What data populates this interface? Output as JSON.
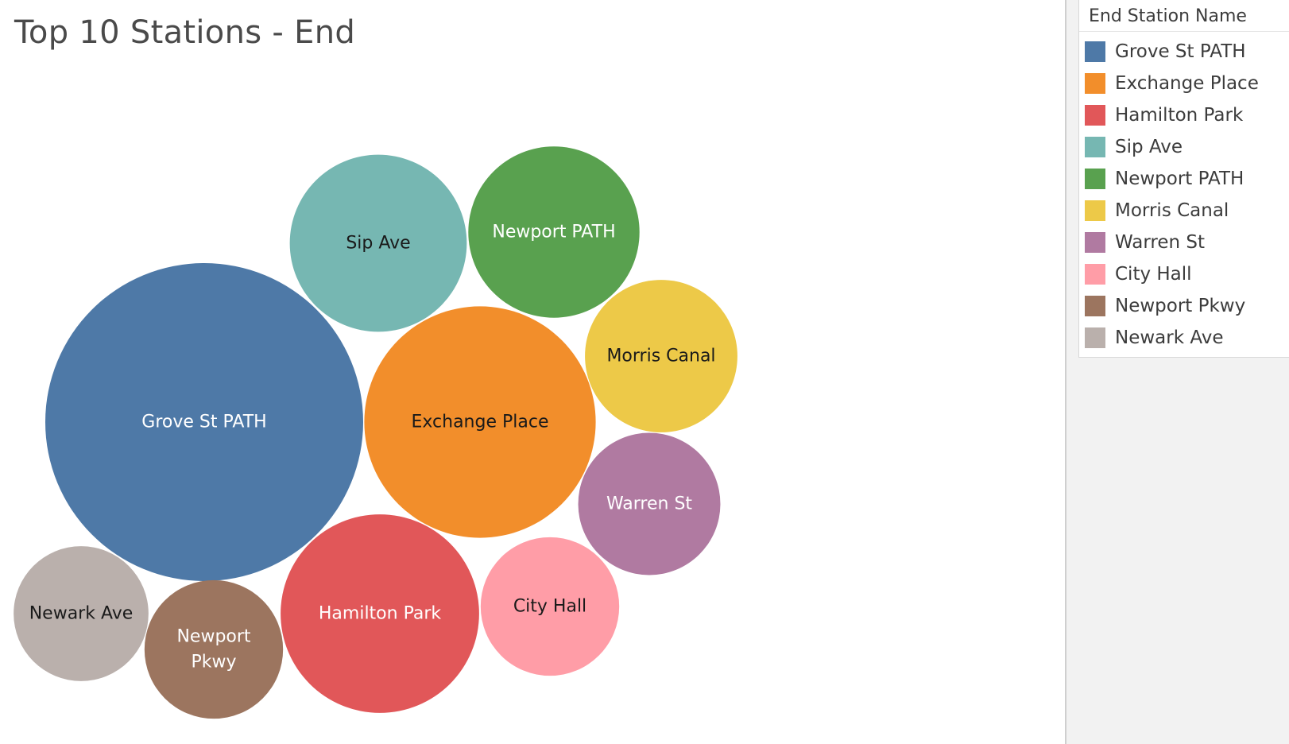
{
  "title": "Top 10 Stations - End",
  "legend": {
    "title": "End Station Name"
  },
  "chart_data": {
    "type": "bubble",
    "title": "Top 10 Stations - End",
    "legend_title": "End Station Name",
    "legend_position": "right",
    "size_encodes": "trip count (relative, estimated from bubble area)",
    "series": [
      {
        "name": "Grove St PATH",
        "value": 100,
        "color": "#4e79a7",
        "label_color": "#ffffff"
      },
      {
        "name": "Exchange Place",
        "value": 53,
        "color": "#f28e2b",
        "label_color": "#1a1a1a"
      },
      {
        "name": "Hamilton Park",
        "value": 39,
        "color": "#e15759",
        "label_color": "#ffffff"
      },
      {
        "name": "Sip Ave",
        "value": 31,
        "color": "#76b7b2",
        "label_color": "#1a1a1a"
      },
      {
        "name": "Newport PATH",
        "value": 29,
        "color": "#59a14f",
        "label_color": "#ffffff"
      },
      {
        "name": "Morris Canal",
        "value": 23,
        "color": "#edc948",
        "label_color": "#1a1a1a"
      },
      {
        "name": "Warren St",
        "value": 20,
        "color": "#b07aa1",
        "label_color": "#ffffff"
      },
      {
        "name": "City Hall",
        "value": 19,
        "color": "#ff9da7",
        "label_color": "#1a1a1a"
      },
      {
        "name": "Newport Pkwy",
        "value": 19,
        "color": "#9c755f",
        "label_color": "#ffffff"
      },
      {
        "name": "Newark Ave",
        "value": 18,
        "color": "#bab0ac",
        "label_color": "#1a1a1a"
      }
    ]
  }
}
